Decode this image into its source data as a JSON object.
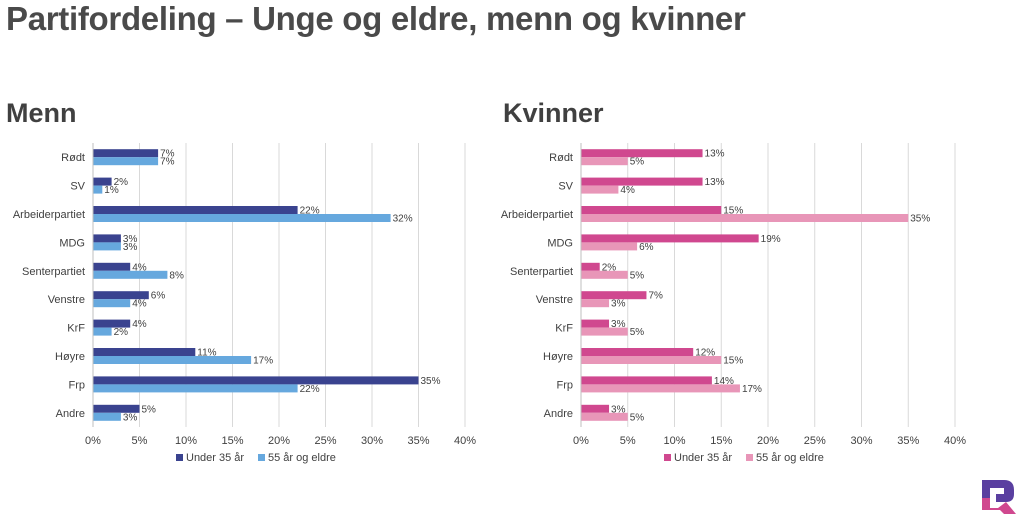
{
  "page": {
    "title": "Partifordeling – Unge og eldre, menn og kvinner"
  },
  "logo_icon": "brand-q-logo-icon",
  "colors": {
    "men_under35": "#3a438f",
    "men_55plus": "#66a8de",
    "women_under35": "#d0488f",
    "women_55plus": "#e896b8",
    "grid": "#d9d9d9",
    "logo_top": "#5a3fa0",
    "logo_bottom": "#d0488f"
  },
  "chart_data": [
    {
      "type": "bar",
      "orientation": "horizontal",
      "title": "Menn",
      "categories": [
        "Rødt",
        "SV",
        "Arbeiderpartiet",
        "MDG",
        "Senterpartiet",
        "Venstre",
        "KrF",
        "Høyre",
        "Frp",
        "Andre"
      ],
      "series": [
        {
          "name": "Under 35 år",
          "values": [
            7,
            2,
            22,
            3,
            4,
            6,
            4,
            11,
            35,
            5
          ],
          "labels": [
            "7%",
            "2%",
            "22%",
            "3%",
            "4%",
            "6%",
            "4%",
            "11%",
            "35%",
            "5%"
          ]
        },
        {
          "name": "55 år og eldre",
          "values": [
            7,
            1,
            32,
            3,
            8,
            4,
            2,
            17,
            22,
            3
          ],
          "labels": [
            "7%",
            "1%",
            "32%",
            "3%",
            "8%",
            "4%",
            "2%",
            "17%",
            "22%",
            "3%"
          ]
        }
      ],
      "xlim": [
        0,
        40
      ],
      "ticks": [
        "0%",
        "5%",
        "10%",
        "15%",
        "20%",
        "25%",
        "30%",
        "35%",
        "40%"
      ],
      "grid": true,
      "legend_position": "bottom"
    },
    {
      "type": "bar",
      "orientation": "horizontal",
      "title": "Kvinner",
      "categories": [
        "Rødt",
        "SV",
        "Arbeiderpartiet",
        "MDG",
        "Senterpartiet",
        "Venstre",
        "KrF",
        "Høyre",
        "Frp",
        "Andre"
      ],
      "series": [
        {
          "name": "Under 35 år",
          "values": [
            13,
            13,
            15,
            19,
            2,
            7,
            3,
            12,
            14,
            3
          ],
          "labels": [
            "13%",
            "13%",
            "15%",
            "19%",
            "2%",
            "7%",
            "3%",
            "12%",
            "14%",
            "3%"
          ]
        },
        {
          "name": "55 år og eldre",
          "values": [
            5,
            4,
            35,
            6,
            5,
            3,
            5,
            15,
            17,
            5
          ],
          "labels": [
            "5%",
            "4%",
            "35%",
            "6%",
            "5%",
            "3%",
            "5%",
            "15%",
            "17%",
            "5%"
          ]
        }
      ],
      "xlim": [
        0,
        40
      ],
      "ticks": [
        "0%",
        "5%",
        "10%",
        "15%",
        "20%",
        "25%",
        "30%",
        "35%",
        "40%"
      ],
      "grid": true,
      "legend_position": "bottom"
    }
  ]
}
